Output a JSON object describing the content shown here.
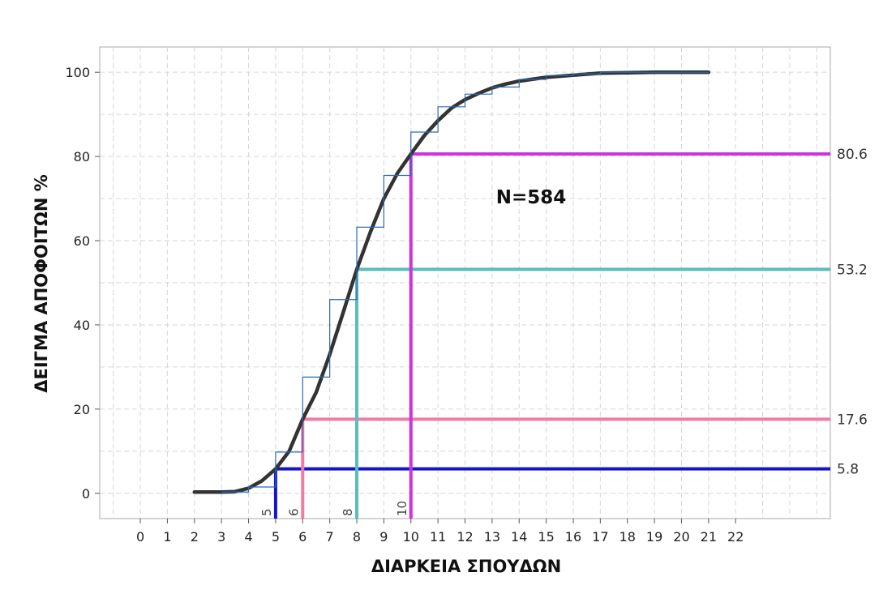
{
  "chart_data": {
    "type": "line",
    "xlabel": "ΔΙΑΡΚΕΙΑ ΣΠΟΥΔΩΝ",
    "ylabel": "ΔΕΙΓΜΑ ΑΠΟΦΟΙΤΩΝ %",
    "annotation": "N=584",
    "xlim": [
      -1.5,
      25.5
    ],
    "ylim": [
      -6,
      106
    ],
    "x_ticks": [
      0,
      1,
      2,
      3,
      4,
      5,
      6,
      7,
      8,
      9,
      10,
      11,
      12,
      13,
      14,
      15,
      16,
      17,
      18,
      19,
      20,
      21,
      22
    ],
    "y_ticks": [
      0,
      20,
      40,
      60,
      80,
      100
    ],
    "grid": true,
    "series": [
      {
        "type": "line",
        "color": "#333333",
        "points": [
          [
            2,
            0.3
          ],
          [
            3,
            0.3
          ],
          [
            3.5,
            0.4
          ],
          [
            4,
            1.2
          ],
          [
            4.5,
            3
          ],
          [
            5,
            5.8
          ],
          [
            5.5,
            10
          ],
          [
            6,
            17.6
          ],
          [
            6.5,
            24
          ],
          [
            7,
            33
          ],
          [
            7.5,
            43
          ],
          [
            8,
            53.2
          ],
          [
            8.5,
            62
          ],
          [
            9,
            70
          ],
          [
            9.5,
            76
          ],
          [
            10,
            80.6
          ],
          [
            10.5,
            85
          ],
          [
            11,
            88.5
          ],
          [
            11.5,
            91.5
          ],
          [
            12,
            93.5
          ],
          [
            12.5,
            95
          ],
          [
            13,
            96.3
          ],
          [
            13.5,
            97.2
          ],
          [
            14,
            97.9
          ],
          [
            15,
            98.8
          ],
          [
            16,
            99.3
          ],
          [
            17,
            99.8
          ],
          [
            18,
            99.9
          ],
          [
            19,
            100
          ],
          [
            21,
            100
          ]
        ]
      },
      {
        "type": "step",
        "color": "#2a6ab8",
        "points": [
          [
            3,
            0.3
          ],
          [
            4,
            1.5
          ],
          [
            5,
            9.8
          ],
          [
            6,
            27.6
          ],
          [
            7,
            46
          ],
          [
            8,
            63.2
          ],
          [
            9,
            75.5
          ],
          [
            10,
            85.8
          ],
          [
            11,
            91.8
          ],
          [
            12,
            94.8
          ],
          [
            13,
            96.5
          ],
          [
            14,
            98.3
          ],
          [
            15,
            99.2
          ],
          [
            16,
            99.6
          ],
          [
            17,
            100
          ],
          [
            21,
            100
          ]
        ]
      }
    ],
    "reference_lines": [
      {
        "x": 5,
        "y": 5.8,
        "color": "#1414c8",
        "x_label": "5",
        "y_label": "5.8"
      },
      {
        "x": 6,
        "y": 17.6,
        "color": "#f07ca6",
        "x_label": "6",
        "y_label": "17.6"
      },
      {
        "x": 8,
        "y": 53.2,
        "color": "#5bbcbc",
        "x_label": "8",
        "y_label": "53.2"
      },
      {
        "x": 10,
        "y": 80.6,
        "color": "#cc33dd",
        "x_label": "10",
        "y_label": "80.6"
      }
    ]
  }
}
